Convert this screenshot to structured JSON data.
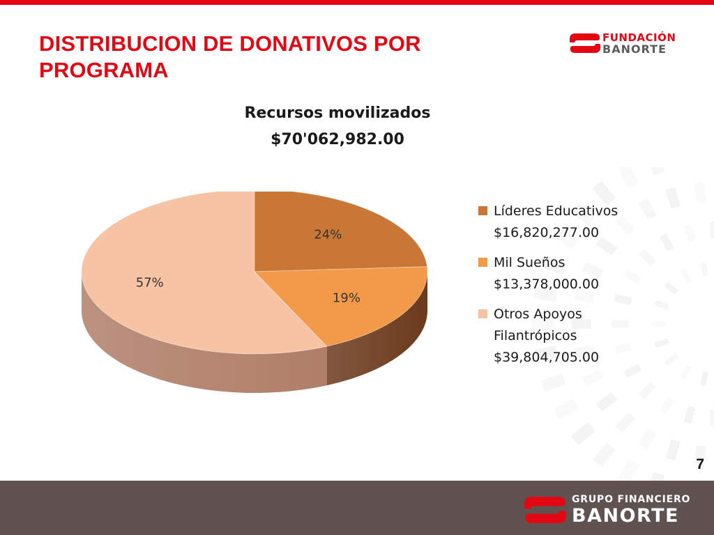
{
  "slide": {
    "title": "DISTRIBUCION DE DONATIVOS POR PROGRAMA",
    "page_number": "7",
    "brand_color": "#e30613",
    "footer_color": "#5f5250"
  },
  "logo_top": {
    "line1": "FUNDACIÓN",
    "line2": "BANORTE",
    "mark_icon": "banorte-mark-icon"
  },
  "logo_bottom": {
    "line1": "GRUPO FINANCIERO",
    "line2": "BANORTE",
    "mark_icon": "banorte-mark-icon"
  },
  "chart_data": {
    "type": "pie",
    "title_lines": [
      "Recursos movilizados",
      "$70'062,982.00"
    ],
    "legend_position": "right",
    "slices": [
      {
        "label_lines": [
          "Líderes Educativos",
          "$16,820,277.00"
        ],
        "value": 16820277.0,
        "percent_label": "24%",
        "color": "#c87737",
        "side_color": "#7d4519"
      },
      {
        "label_lines": [
          "Mil Sueños",
          "$13,378,000.00"
        ],
        "value": 13378000.0,
        "percent_label": "19%",
        "color": "#f3994a",
        "side_color": "#6b3a1c"
      },
      {
        "label_lines": [
          "Otros Apoyos",
          "Filantrópicos",
          "$39,804,705.00"
        ],
        "value": 39804705.0,
        "percent_label": "57%",
        "color": "#f7c3a5",
        "side_color": "#b07e68"
      }
    ]
  }
}
